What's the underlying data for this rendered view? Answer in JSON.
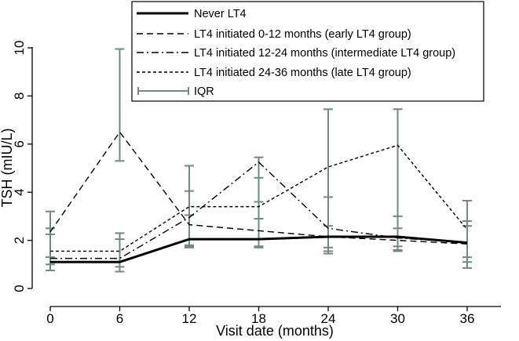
{
  "chart_data": {
    "type": "line",
    "title": "",
    "xlabel": "Visit date (months)",
    "ylabel": "TSH (mIU/L)",
    "xlim": [
      0,
      36
    ],
    "ylim": [
      0,
      10
    ],
    "xticks": [
      0,
      6,
      12,
      18,
      24,
      30,
      36
    ],
    "yticks": [
      0,
      2,
      4,
      6,
      8,
      10
    ],
    "grid": false,
    "legend_position": "top-right",
    "x": [
      0,
      6,
      12,
      18,
      24,
      30,
      36
    ],
    "series": [
      {
        "name": "Never LT4",
        "style": "solid-thick",
        "values": [
          1.1,
          1.1,
          2.05,
          2.05,
          2.15,
          2.15,
          1.9
        ]
      },
      {
        "name": "LT4 initiated 0-12 months (early LT4 group)",
        "style": "long-dash",
        "values": [
          2.35,
          6.5,
          2.65,
          2.4,
          2.15,
          2.0,
          1.85
        ]
      },
      {
        "name": "LT4 initiated 12-24 months (intermediate LT4 group)",
        "style": "dash-dot",
        "values": [
          1.25,
          1.25,
          2.95,
          5.25,
          2.5,
          2.1,
          1.9
        ]
      },
      {
        "name": "LT4 initiated 24-36 months (late LT4 group)",
        "style": "short-dash",
        "values": [
          1.55,
          1.55,
          3.4,
          3.4,
          5.05,
          5.95,
          2.45
        ]
      }
    ],
    "iqr_name": "IQR",
    "iqr": [
      {
        "x": 0,
        "low": 0.75,
        "high": 3.2
      },
      {
        "x": 0,
        "low": 1.0,
        "high": 2.5
      },
      {
        "x": 0,
        "low": 1.3,
        "high": 2.25
      },
      {
        "x": 6,
        "low": 5.3,
        "high": 9.95
      },
      {
        "x": 6,
        "low": 0.7,
        "high": 2.3
      },
      {
        "x": 6,
        "low": 0.9,
        "high": 2.05
      },
      {
        "x": 12,
        "low": 1.7,
        "high": 5.1
      },
      {
        "x": 12,
        "low": 1.75,
        "high": 4.05
      },
      {
        "x": 12,
        "low": 1.8,
        "high": 3.05
      },
      {
        "x": 18,
        "low": 3.6,
        "high": 5.45
      },
      {
        "x": 18,
        "low": 1.7,
        "high": 4.6
      },
      {
        "x": 18,
        "low": 1.75,
        "high": 2.9
      },
      {
        "x": 24,
        "low": 1.55,
        "high": 7.45
      },
      {
        "x": 24,
        "low": 1.45,
        "high": 3.8
      },
      {
        "x": 24,
        "low": 1.7,
        "high": 2.6
      },
      {
        "x": 30,
        "low": 1.55,
        "high": 7.45
      },
      {
        "x": 30,
        "low": 1.6,
        "high": 3.0
      },
      {
        "x": 30,
        "low": 1.75,
        "high": 2.5
      },
      {
        "x": 36,
        "low": 0.85,
        "high": 3.65
      },
      {
        "x": 36,
        "low": 1.1,
        "high": 2.8
      },
      {
        "x": 36,
        "low": 1.3,
        "high": 2.6
      }
    ],
    "colors": {
      "lines": "#000000",
      "iqr": "#6e8b7e",
      "axis": "#000000",
      "legend_border": "#000000"
    }
  }
}
